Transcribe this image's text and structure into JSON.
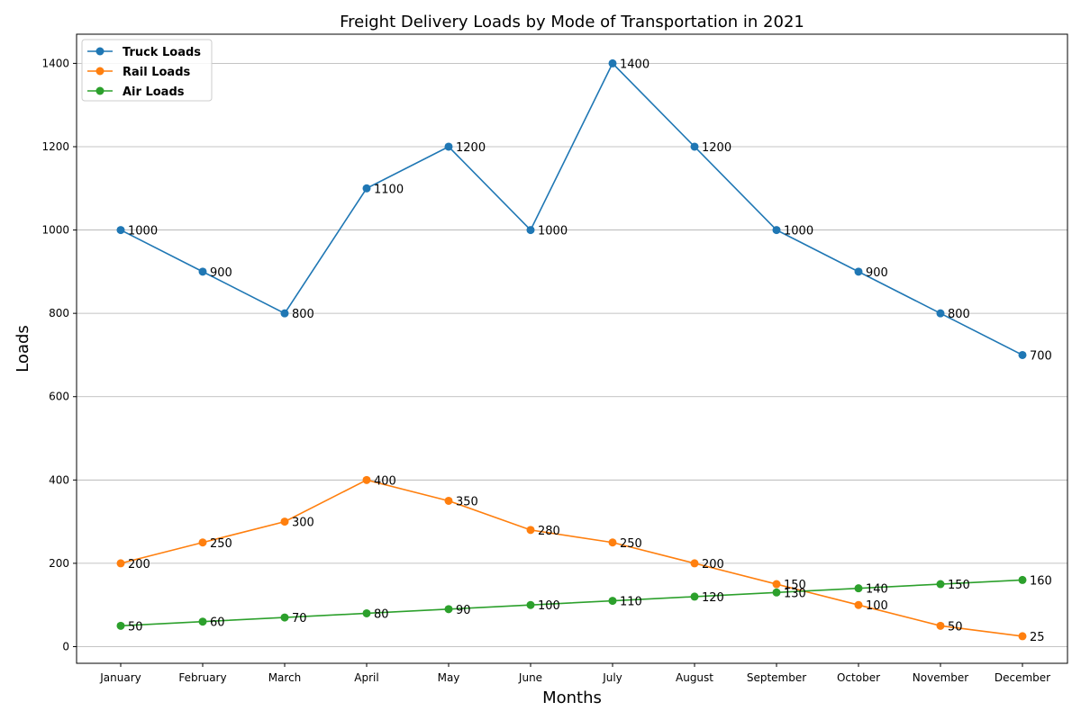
{
  "chart_data": {
    "type": "line",
    "title": "Freight Delivery Loads by Mode of Transportation in 2021",
    "xlabel": "Months",
    "ylabel": "Loads",
    "categories": [
      "January",
      "February",
      "March",
      "April",
      "May",
      "June",
      "July",
      "August",
      "September",
      "October",
      "November",
      "December"
    ],
    "ylim": [
      -40,
      1470
    ],
    "yticks": [
      0,
      200,
      400,
      600,
      800,
      1000,
      1200,
      1400
    ],
    "grid": "horizontal",
    "legend_position": "top-left",
    "series": [
      {
        "name": "Truck Loads",
        "color": "#1f77b4",
        "values": [
          1000,
          900,
          800,
          1100,
          1200,
          1000,
          1400,
          1200,
          1000,
          900,
          800,
          700
        ]
      },
      {
        "name": "Rail Loads",
        "color": "#ff7f0e",
        "values": [
          200,
          250,
          300,
          400,
          350,
          280,
          250,
          200,
          150,
          100,
          50,
          25
        ]
      },
      {
        "name": "Air Loads",
        "color": "#2ca02c",
        "values": [
          50,
          60,
          70,
          80,
          90,
          100,
          110,
          120,
          130,
          140,
          150,
          160
        ]
      }
    ]
  }
}
